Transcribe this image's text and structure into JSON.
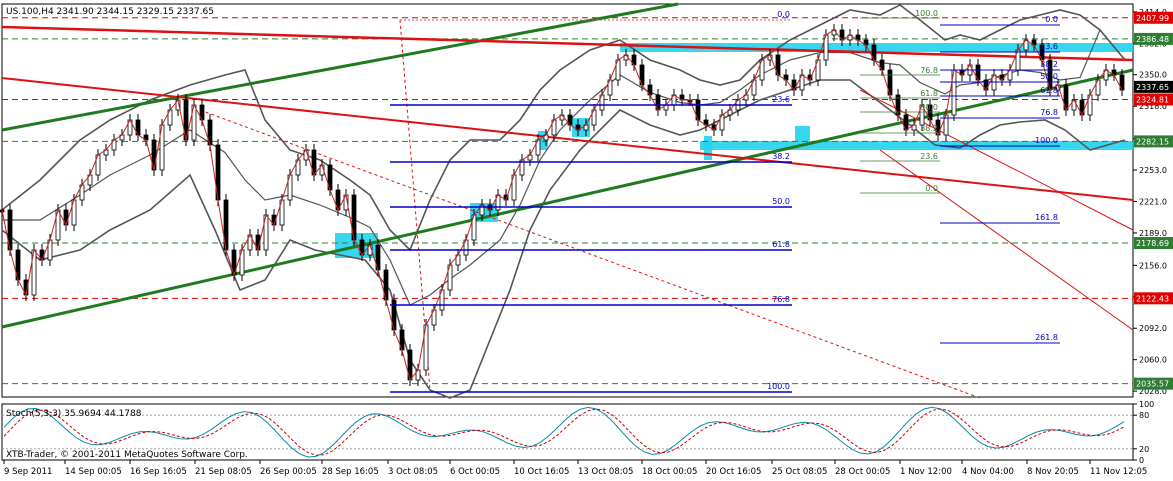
{
  "window": {
    "symbol_header": "US.100,H4  2341.90 2344.15 2329.15 2337.65",
    "stoch_header": "Stoch(5,3,3) 35.9694 44.1788",
    "copyright": "XTB-Trader, © 2001-2011 MetaQuotes Software Corp."
  },
  "price_axis": {
    "ticks": [
      "2414.0",
      "2382.0",
      "2350.0",
      "2318.0",
      "2285.0",
      "2253.0",
      "2221.0",
      "2189.0",
      "2156.0",
      "2124.0",
      "2092.0",
      "2060.0",
      "2028.0"
    ],
    "labels": [
      {
        "text": "2407.99",
        "bg": "#e00000",
        "fg": "#ffffff"
      },
      {
        "text": "2386.48",
        "bg": "#2e7d32",
        "fg": "#ffffff"
      },
      {
        "text": "2337.65",
        "bg": "#000000",
        "fg": "#ffffff"
      },
      {
        "text": "2324.81",
        "bg": "#e00000",
        "fg": "#ffffff"
      },
      {
        "text": "2282.15",
        "bg": "#2e7d32",
        "fg": "#ffffff"
      },
      {
        "text": "2178.69",
        "bg": "#2e7d32",
        "fg": "#ffffff"
      },
      {
        "text": "2122.43",
        "bg": "#e00000",
        "fg": "#ffffff"
      },
      {
        "text": "2035.57",
        "bg": "#2e7d32",
        "fg": "#ffffff"
      }
    ]
  },
  "stoch_axis": {
    "ticks": [
      "100",
      "80",
      "20",
      "0"
    ]
  },
  "time_axis": {
    "labels": [
      "9 Sep 2011",
      "14 Sep 00:05",
      "16 Sep 16:05",
      "21 Sep 08:05",
      "26 Sep 00:05",
      "28 Sep 16:05",
      "3 Oct 08:05",
      "6 Oct 00:05",
      "10 Oct 16:05",
      "13 Oct 08:05",
      "18 Oct 00:05",
      "20 Oct 16:05",
      "25 Oct 08:05",
      "28 Oct 00:05",
      "1 Nov 12:00",
      "4 Nov 04:00",
      "8 Nov 20:05",
      "11 Nov 12:05"
    ]
  },
  "fib_left": {
    "levels": [
      "0.0",
      "23.6",
      "38.2",
      "50.0",
      "61.8",
      "76.8",
      "100.0"
    ]
  },
  "fib_right": {
    "levels": [
      "100.0",
      "76.8",
      "61.8",
      "50.0",
      "38.2",
      "23.6",
      "0.0"
    ]
  },
  "fib_far": {
    "levels": [
      "0.0",
      "23.6",
      "38.2",
      "50.0",
      "61.8",
      "76.8",
      "100.0",
      "161.8",
      "261.8"
    ]
  },
  "colors": {
    "up_trend": "#1f7a1f",
    "down_trend": "#dd1111",
    "fib": "#0000cc",
    "bands": "#555555",
    "zone": "#22d3ee",
    "price": "#000000",
    "stoch_main": "#0a8aa8",
    "stoch_signal": "#cc0000"
  }
}
